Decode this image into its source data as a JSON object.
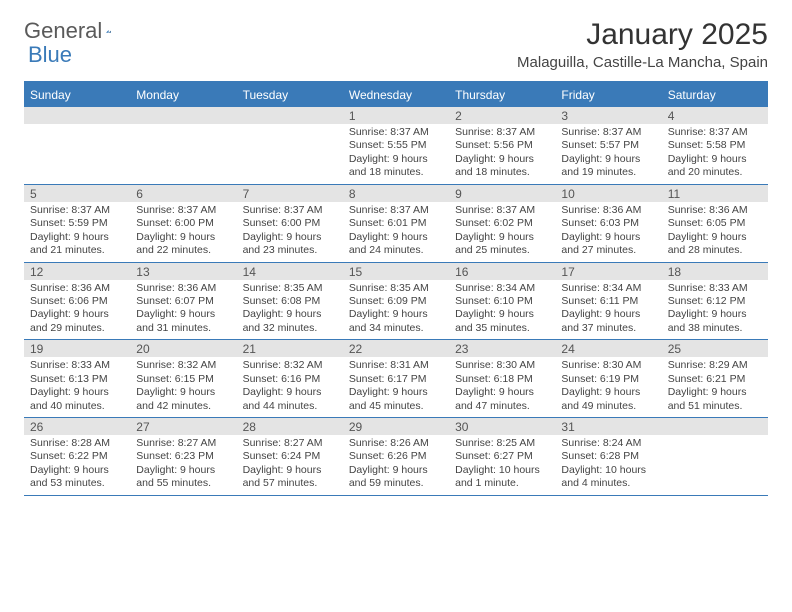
{
  "brand": {
    "part1": "General",
    "part2": "Blue"
  },
  "title": "January 2025",
  "location": "Malaguilla, Castille-La Mancha, Spain",
  "colors": {
    "accent": "#3a7ab8",
    "header_bg": "#3a7ab8",
    "daynum_bg": "#e4e4e4",
    "text": "#444444",
    "bg": "#ffffff"
  },
  "day_headers": [
    "Sunday",
    "Monday",
    "Tuesday",
    "Wednesday",
    "Thursday",
    "Friday",
    "Saturday"
  ],
  "weeks": [
    [
      {
        "n": "",
        "sunrise": "",
        "sunset": "",
        "daylight": ""
      },
      {
        "n": "",
        "sunrise": "",
        "sunset": "",
        "daylight": ""
      },
      {
        "n": "",
        "sunrise": "",
        "sunset": "",
        "daylight": ""
      },
      {
        "n": "1",
        "sunrise": "Sunrise: 8:37 AM",
        "sunset": "Sunset: 5:55 PM",
        "daylight": "Daylight: 9 hours and 18 minutes."
      },
      {
        "n": "2",
        "sunrise": "Sunrise: 8:37 AM",
        "sunset": "Sunset: 5:56 PM",
        "daylight": "Daylight: 9 hours and 18 minutes."
      },
      {
        "n": "3",
        "sunrise": "Sunrise: 8:37 AM",
        "sunset": "Sunset: 5:57 PM",
        "daylight": "Daylight: 9 hours and 19 minutes."
      },
      {
        "n": "4",
        "sunrise": "Sunrise: 8:37 AM",
        "sunset": "Sunset: 5:58 PM",
        "daylight": "Daylight: 9 hours and 20 minutes."
      }
    ],
    [
      {
        "n": "5",
        "sunrise": "Sunrise: 8:37 AM",
        "sunset": "Sunset: 5:59 PM",
        "daylight": "Daylight: 9 hours and 21 minutes."
      },
      {
        "n": "6",
        "sunrise": "Sunrise: 8:37 AM",
        "sunset": "Sunset: 6:00 PM",
        "daylight": "Daylight: 9 hours and 22 minutes."
      },
      {
        "n": "7",
        "sunrise": "Sunrise: 8:37 AM",
        "sunset": "Sunset: 6:00 PM",
        "daylight": "Daylight: 9 hours and 23 minutes."
      },
      {
        "n": "8",
        "sunrise": "Sunrise: 8:37 AM",
        "sunset": "Sunset: 6:01 PM",
        "daylight": "Daylight: 9 hours and 24 minutes."
      },
      {
        "n": "9",
        "sunrise": "Sunrise: 8:37 AM",
        "sunset": "Sunset: 6:02 PM",
        "daylight": "Daylight: 9 hours and 25 minutes."
      },
      {
        "n": "10",
        "sunrise": "Sunrise: 8:36 AM",
        "sunset": "Sunset: 6:03 PM",
        "daylight": "Daylight: 9 hours and 27 minutes."
      },
      {
        "n": "11",
        "sunrise": "Sunrise: 8:36 AM",
        "sunset": "Sunset: 6:05 PM",
        "daylight": "Daylight: 9 hours and 28 minutes."
      }
    ],
    [
      {
        "n": "12",
        "sunrise": "Sunrise: 8:36 AM",
        "sunset": "Sunset: 6:06 PM",
        "daylight": "Daylight: 9 hours and 29 minutes."
      },
      {
        "n": "13",
        "sunrise": "Sunrise: 8:36 AM",
        "sunset": "Sunset: 6:07 PM",
        "daylight": "Daylight: 9 hours and 31 minutes."
      },
      {
        "n": "14",
        "sunrise": "Sunrise: 8:35 AM",
        "sunset": "Sunset: 6:08 PM",
        "daylight": "Daylight: 9 hours and 32 minutes."
      },
      {
        "n": "15",
        "sunrise": "Sunrise: 8:35 AM",
        "sunset": "Sunset: 6:09 PM",
        "daylight": "Daylight: 9 hours and 34 minutes."
      },
      {
        "n": "16",
        "sunrise": "Sunrise: 8:34 AM",
        "sunset": "Sunset: 6:10 PM",
        "daylight": "Daylight: 9 hours and 35 minutes."
      },
      {
        "n": "17",
        "sunrise": "Sunrise: 8:34 AM",
        "sunset": "Sunset: 6:11 PM",
        "daylight": "Daylight: 9 hours and 37 minutes."
      },
      {
        "n": "18",
        "sunrise": "Sunrise: 8:33 AM",
        "sunset": "Sunset: 6:12 PM",
        "daylight": "Daylight: 9 hours and 38 minutes."
      }
    ],
    [
      {
        "n": "19",
        "sunrise": "Sunrise: 8:33 AM",
        "sunset": "Sunset: 6:13 PM",
        "daylight": "Daylight: 9 hours and 40 minutes."
      },
      {
        "n": "20",
        "sunrise": "Sunrise: 8:32 AM",
        "sunset": "Sunset: 6:15 PM",
        "daylight": "Daylight: 9 hours and 42 minutes."
      },
      {
        "n": "21",
        "sunrise": "Sunrise: 8:32 AM",
        "sunset": "Sunset: 6:16 PM",
        "daylight": "Daylight: 9 hours and 44 minutes."
      },
      {
        "n": "22",
        "sunrise": "Sunrise: 8:31 AM",
        "sunset": "Sunset: 6:17 PM",
        "daylight": "Daylight: 9 hours and 45 minutes."
      },
      {
        "n": "23",
        "sunrise": "Sunrise: 8:30 AM",
        "sunset": "Sunset: 6:18 PM",
        "daylight": "Daylight: 9 hours and 47 minutes."
      },
      {
        "n": "24",
        "sunrise": "Sunrise: 8:30 AM",
        "sunset": "Sunset: 6:19 PM",
        "daylight": "Daylight: 9 hours and 49 minutes."
      },
      {
        "n": "25",
        "sunrise": "Sunrise: 8:29 AM",
        "sunset": "Sunset: 6:21 PM",
        "daylight": "Daylight: 9 hours and 51 minutes."
      }
    ],
    [
      {
        "n": "26",
        "sunrise": "Sunrise: 8:28 AM",
        "sunset": "Sunset: 6:22 PM",
        "daylight": "Daylight: 9 hours and 53 minutes."
      },
      {
        "n": "27",
        "sunrise": "Sunrise: 8:27 AM",
        "sunset": "Sunset: 6:23 PM",
        "daylight": "Daylight: 9 hours and 55 minutes."
      },
      {
        "n": "28",
        "sunrise": "Sunrise: 8:27 AM",
        "sunset": "Sunset: 6:24 PM",
        "daylight": "Daylight: 9 hours and 57 minutes."
      },
      {
        "n": "29",
        "sunrise": "Sunrise: 8:26 AM",
        "sunset": "Sunset: 6:26 PM",
        "daylight": "Daylight: 9 hours and 59 minutes."
      },
      {
        "n": "30",
        "sunrise": "Sunrise: 8:25 AM",
        "sunset": "Sunset: 6:27 PM",
        "daylight": "Daylight: 10 hours and 1 minute."
      },
      {
        "n": "31",
        "sunrise": "Sunrise: 8:24 AM",
        "sunset": "Sunset: 6:28 PM",
        "daylight": "Daylight: 10 hours and 4 minutes."
      },
      {
        "n": "",
        "sunrise": "",
        "sunset": "",
        "daylight": ""
      }
    ]
  ]
}
